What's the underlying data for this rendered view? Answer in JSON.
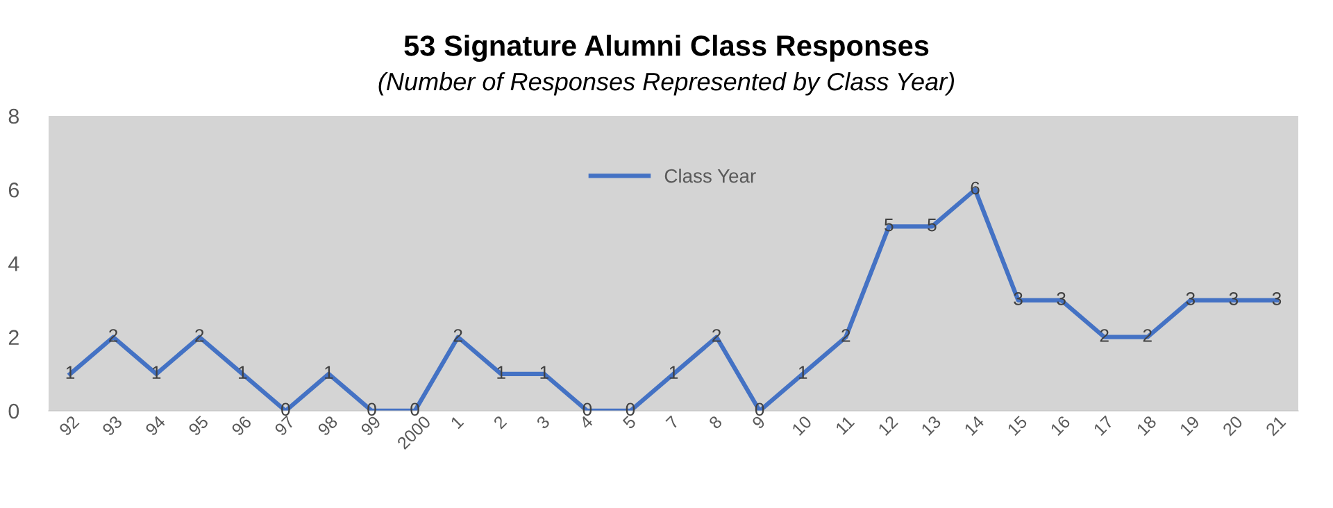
{
  "chart_data": {
    "type": "line",
    "title": "53 Signature Alumni Class Responses",
    "subtitle": "(Number of Responses Represented by Class Year)",
    "categories": [
      "92",
      "93",
      "94",
      "95",
      "96",
      "97",
      "98",
      "99",
      "2000",
      "1",
      "2",
      "3",
      "4",
      "5",
      "7",
      "8",
      "9",
      "10",
      "11",
      "12",
      "13",
      "14",
      "15",
      "16",
      "17",
      "18",
      "19",
      "20",
      "21"
    ],
    "series": [
      {
        "name": "Class Year",
        "color": "#4472c4",
        "values": [
          1,
          2,
          1,
          2,
          1,
          0,
          1,
          0,
          0,
          2,
          1,
          1,
          0,
          0,
          1,
          2,
          0,
          1,
          2,
          5,
          5,
          6,
          3,
          3,
          2,
          2,
          3,
          3,
          3
        ]
      }
    ],
    "ylim": [
      0,
      8
    ],
    "yticks": [
      0,
      2,
      4,
      6,
      8
    ],
    "grid": false,
    "legend": "top",
    "data_labels": true,
    "marker": "none",
    "line_style": "solid"
  }
}
